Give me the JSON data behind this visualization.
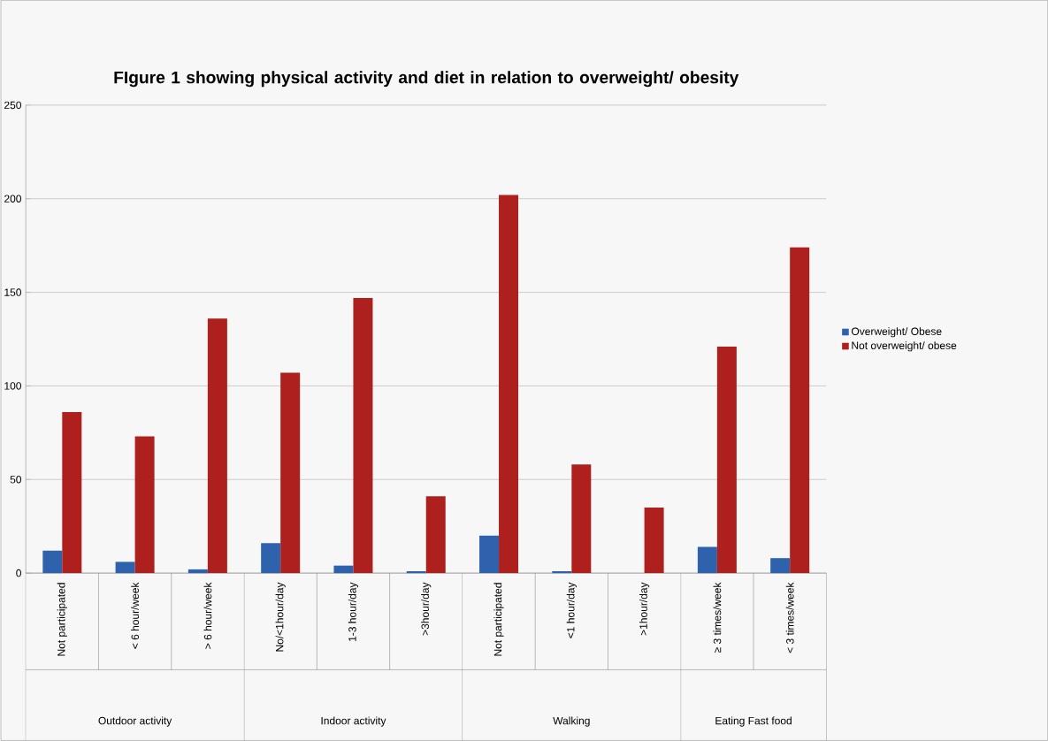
{
  "chart_data": {
    "type": "bar",
    "title": "FIgure 1 showing  physical activity and diet in relation to overweight/ obesity",
    "categories": [
      "Not participated",
      "< 6 hour/week",
      "> 6 hour/week",
      "No/<1hour/day",
      "1-3 hour/day",
      ">3hour/day",
      "Not participated",
      "<1 hour/day",
      ">1hour/day",
      "≥ 3 times/week",
      "< 3 times/week"
    ],
    "series": [
      {
        "name": "Overweight/ Obese",
        "color": "#2e62ad",
        "values": [
          12,
          6,
          2,
          16,
          4,
          1,
          20,
          1,
          0,
          14,
          8
        ]
      },
      {
        "name": "Not overweight/ obese",
        "color": "#ad201e",
        "values": [
          86,
          73,
          136,
          107,
          147,
          41,
          202,
          58,
          35,
          121,
          174
        ]
      }
    ],
    "annotations": [
      "Outdoor activity",
      "Indoor activity",
      "Walking",
      "Eating Fast food"
    ],
    "ylim": [
      0,
      250
    ],
    "yticks": [
      0,
      50,
      100,
      150,
      200,
      250
    ],
    "grid": "y",
    "legend": "right"
  }
}
